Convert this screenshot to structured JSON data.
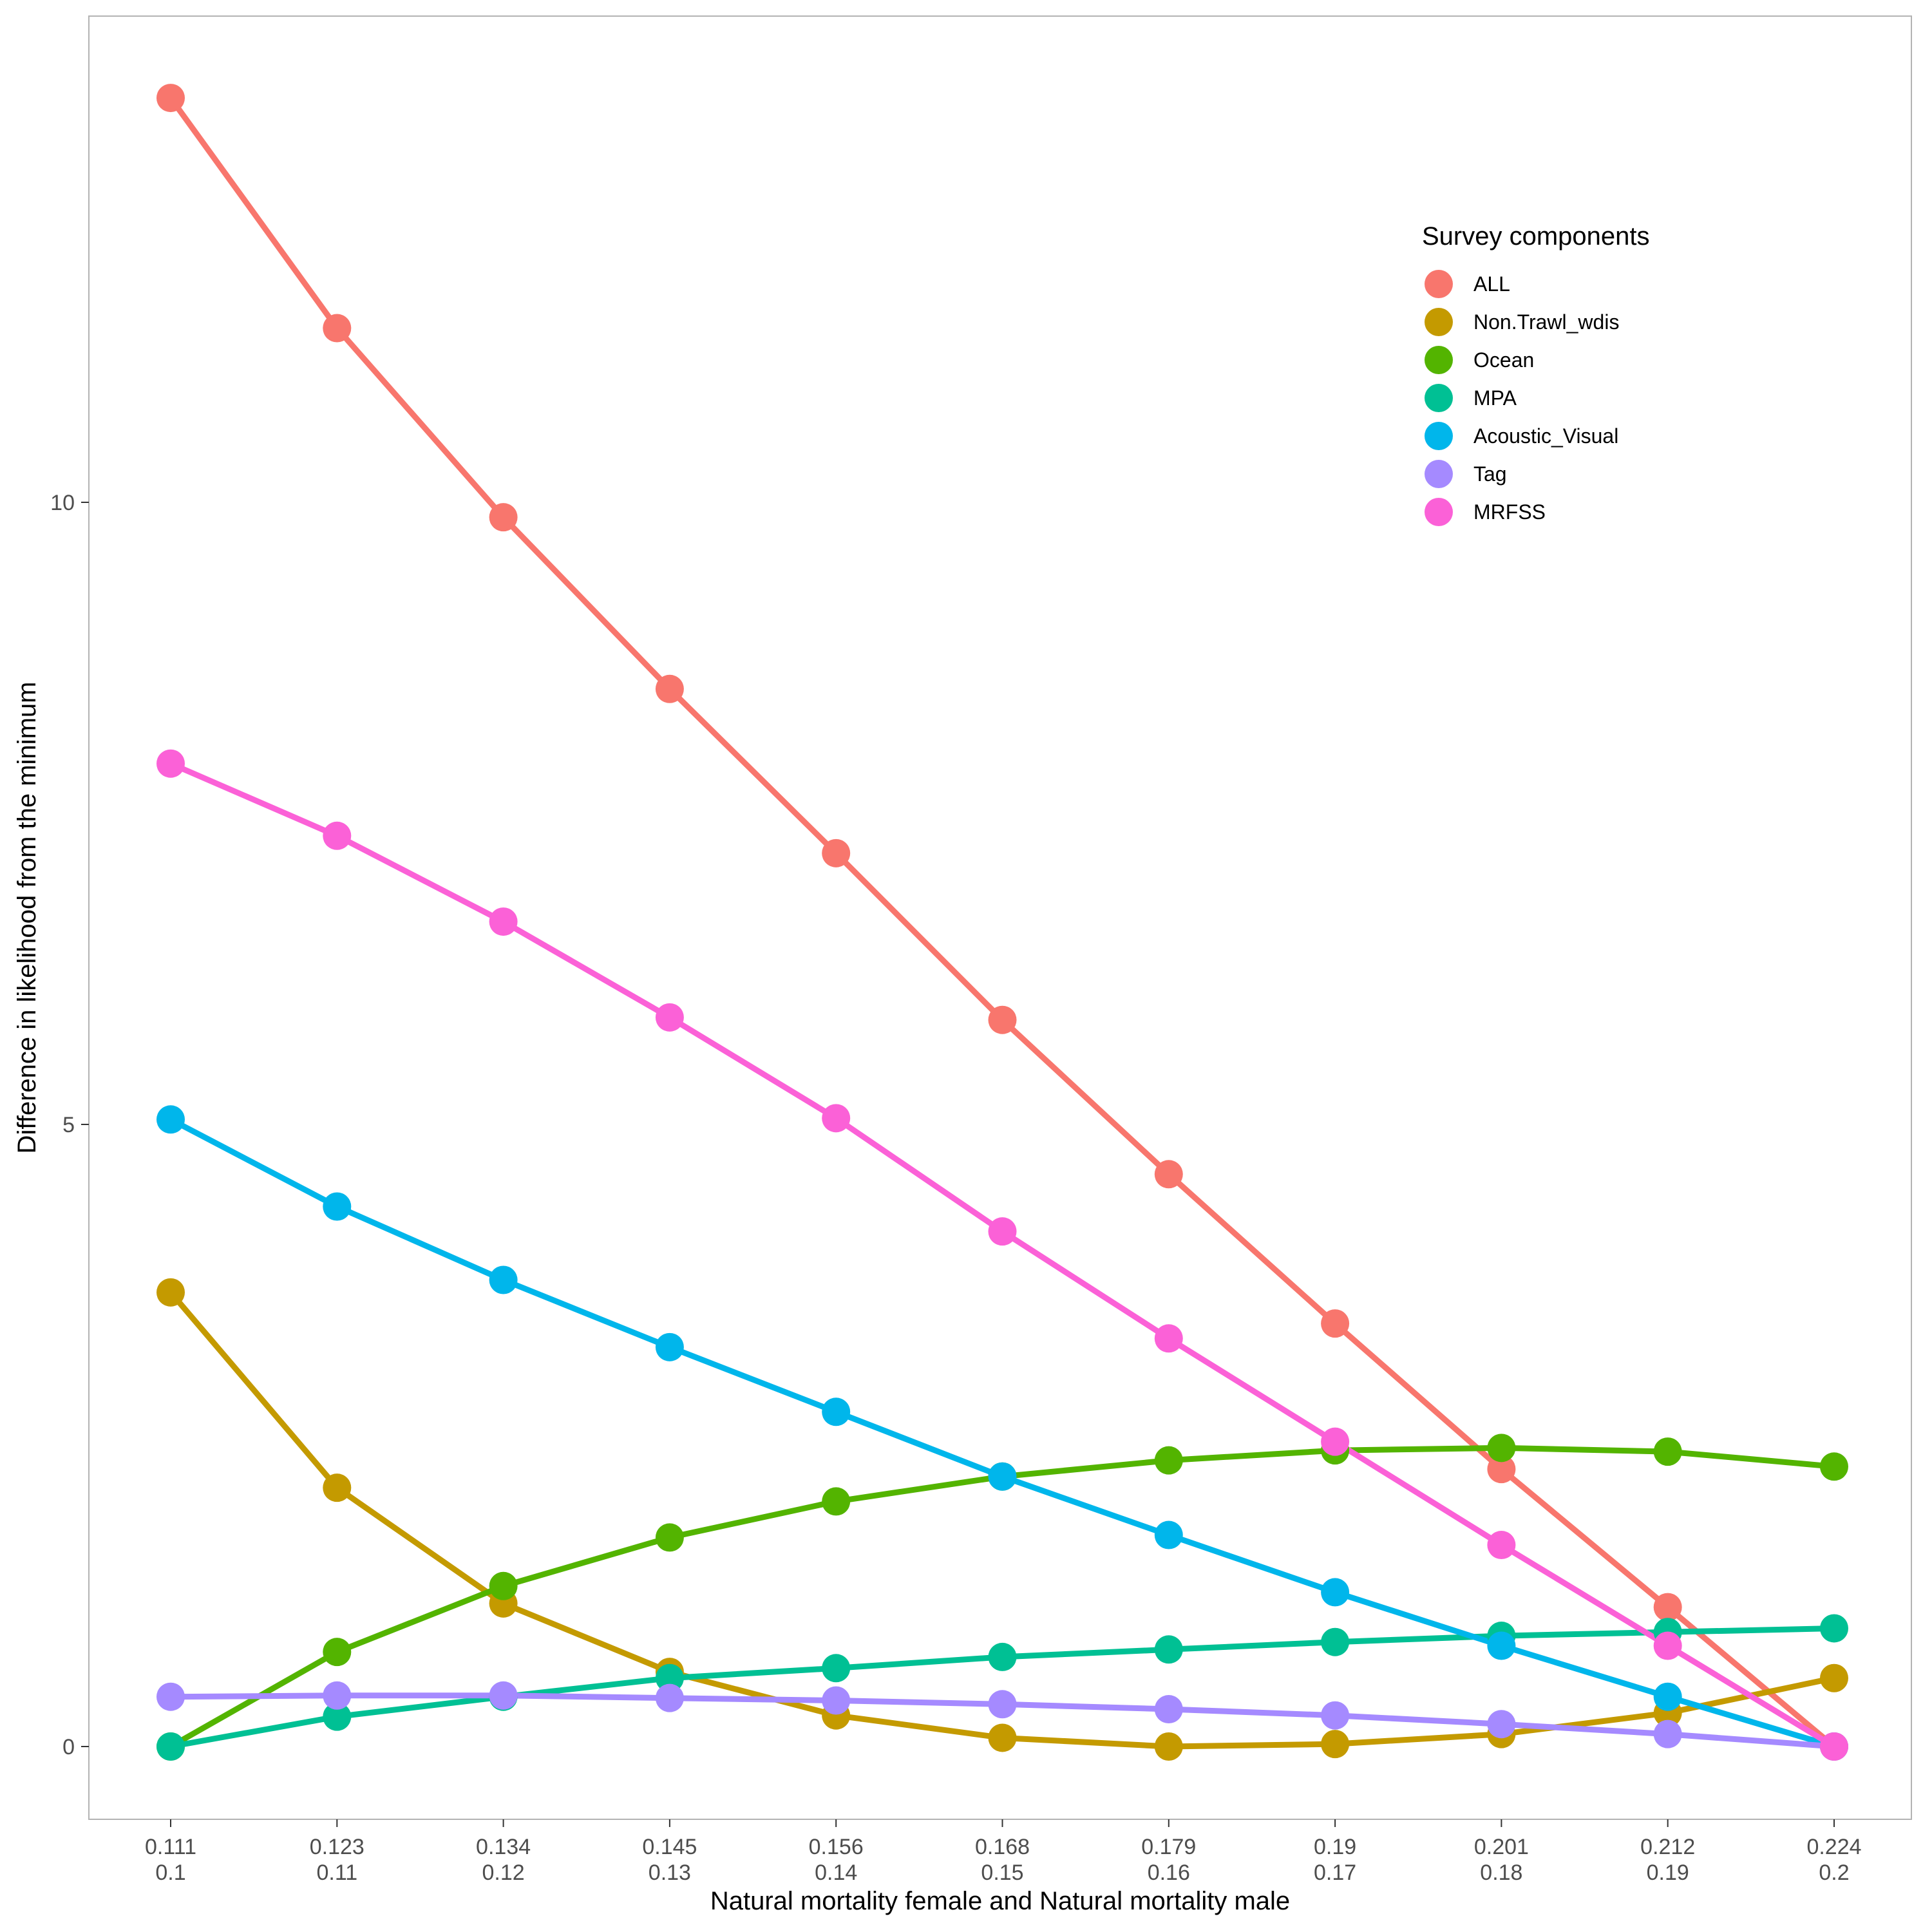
{
  "chart_data": {
    "type": "line",
    "xlabel": "Natural mortality female and Natural mortality male",
    "ylabel": "Difference in likelihood from the minimum",
    "x": [
      0.111,
      0.123,
      0.134,
      0.145,
      0.156,
      0.168,
      0.179,
      0.19,
      0.201,
      0.212,
      0.224
    ],
    "x_tick_labels": [
      [
        "0.111",
        "0.1"
      ],
      [
        "0.123",
        "0.11"
      ],
      [
        "0.134",
        "0.12"
      ],
      [
        "0.145",
        "0.13"
      ],
      [
        "0.156",
        "0.14"
      ],
      [
        "0.168",
        "0.15"
      ],
      [
        "0.179",
        "0.16"
      ],
      [
        "0.19",
        "0.17"
      ],
      [
        "0.201",
        "0.18"
      ],
      [
        "0.212",
        "0.19"
      ],
      [
        "0.224",
        "0.2"
      ]
    ],
    "y_ticks": [
      0,
      5,
      10
    ],
    "ylim": [
      -0.6,
      13.9
    ],
    "grid": false,
    "legend": {
      "title": "Survey components",
      "position": "top-right"
    },
    "series": [
      {
        "name": "ALL",
        "color": "#F8766D",
        "values": [
          13.25,
          11.4,
          9.88,
          8.5,
          7.18,
          5.84,
          4.6,
          3.4,
          2.23,
          1.12,
          0.0
        ]
      },
      {
        "name": "Non.Trawl_wdis",
        "color": "#C49A00",
        "values": [
          3.65,
          2.08,
          1.15,
          0.6,
          0.25,
          0.07,
          0.0,
          0.02,
          0.1,
          0.27,
          0.55
        ]
      },
      {
        "name": "Ocean",
        "color": "#53B400",
        "values": [
          0.0,
          0.76,
          1.29,
          1.68,
          1.97,
          2.17,
          2.3,
          2.38,
          2.4,
          2.37,
          2.25
        ]
      },
      {
        "name": "MPA",
        "color": "#00C094",
        "values": [
          0.0,
          0.24,
          0.4,
          0.55,
          0.63,
          0.72,
          0.78,
          0.84,
          0.89,
          0.92,
          0.95
        ]
      },
      {
        "name": "Acoustic_Visual",
        "color": "#00B6EB",
        "values": [
          5.04,
          4.34,
          3.75,
          3.21,
          2.69,
          2.17,
          1.7,
          1.24,
          0.81,
          0.4,
          0.0
        ]
      },
      {
        "name": "Tag",
        "color": "#A58AFF",
        "values": [
          0.4,
          0.41,
          0.41,
          0.39,
          0.37,
          0.34,
          0.3,
          0.25,
          0.18,
          0.1,
          0.0
        ]
      },
      {
        "name": "MRFSS",
        "color": "#FB61D7",
        "values": [
          7.9,
          7.32,
          6.63,
          5.86,
          5.05,
          4.14,
          3.28,
          2.45,
          1.62,
          0.81,
          0.0
        ]
      }
    ]
  }
}
